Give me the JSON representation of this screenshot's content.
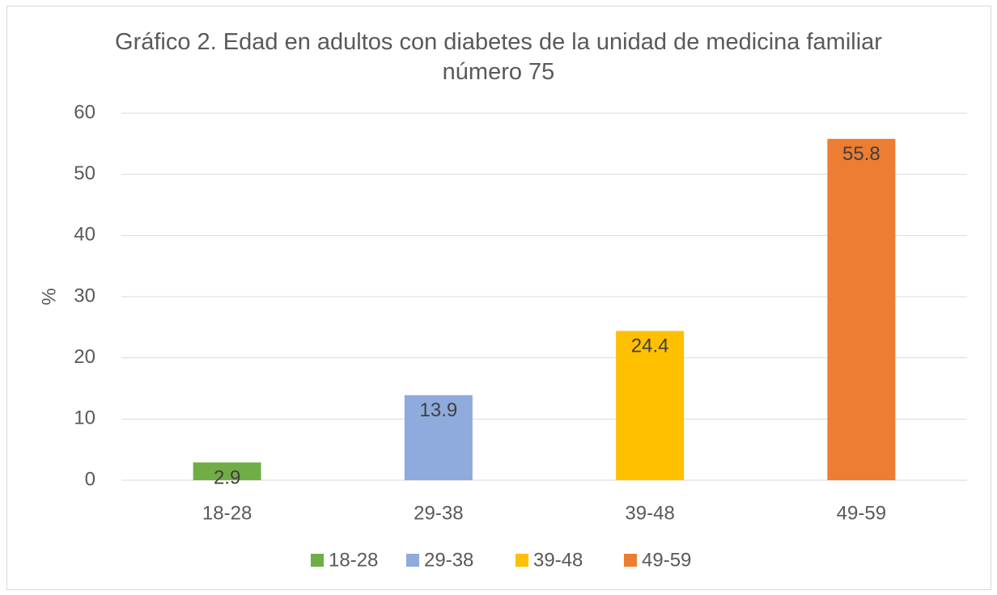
{
  "chart_data": {
    "type": "bar",
    "title": "Gráfico 2. Edad en adultos con diabetes de la unidad de medicina familiar número 75",
    "y_label": "%",
    "categories": [
      "18-28",
      "29-38",
      "39-48",
      "49-59"
    ],
    "values": [
      2.9,
      13.9,
      24.4,
      55.8
    ],
    "colors": [
      "#70ad47",
      "#8faadc",
      "#ffc000",
      "#ed7d31"
    ],
    "ylim": [
      0,
      60
    ],
    "yticks": [
      0,
      10,
      20,
      30,
      40,
      50,
      60
    ],
    "grid": true,
    "legend": "bottom"
  }
}
